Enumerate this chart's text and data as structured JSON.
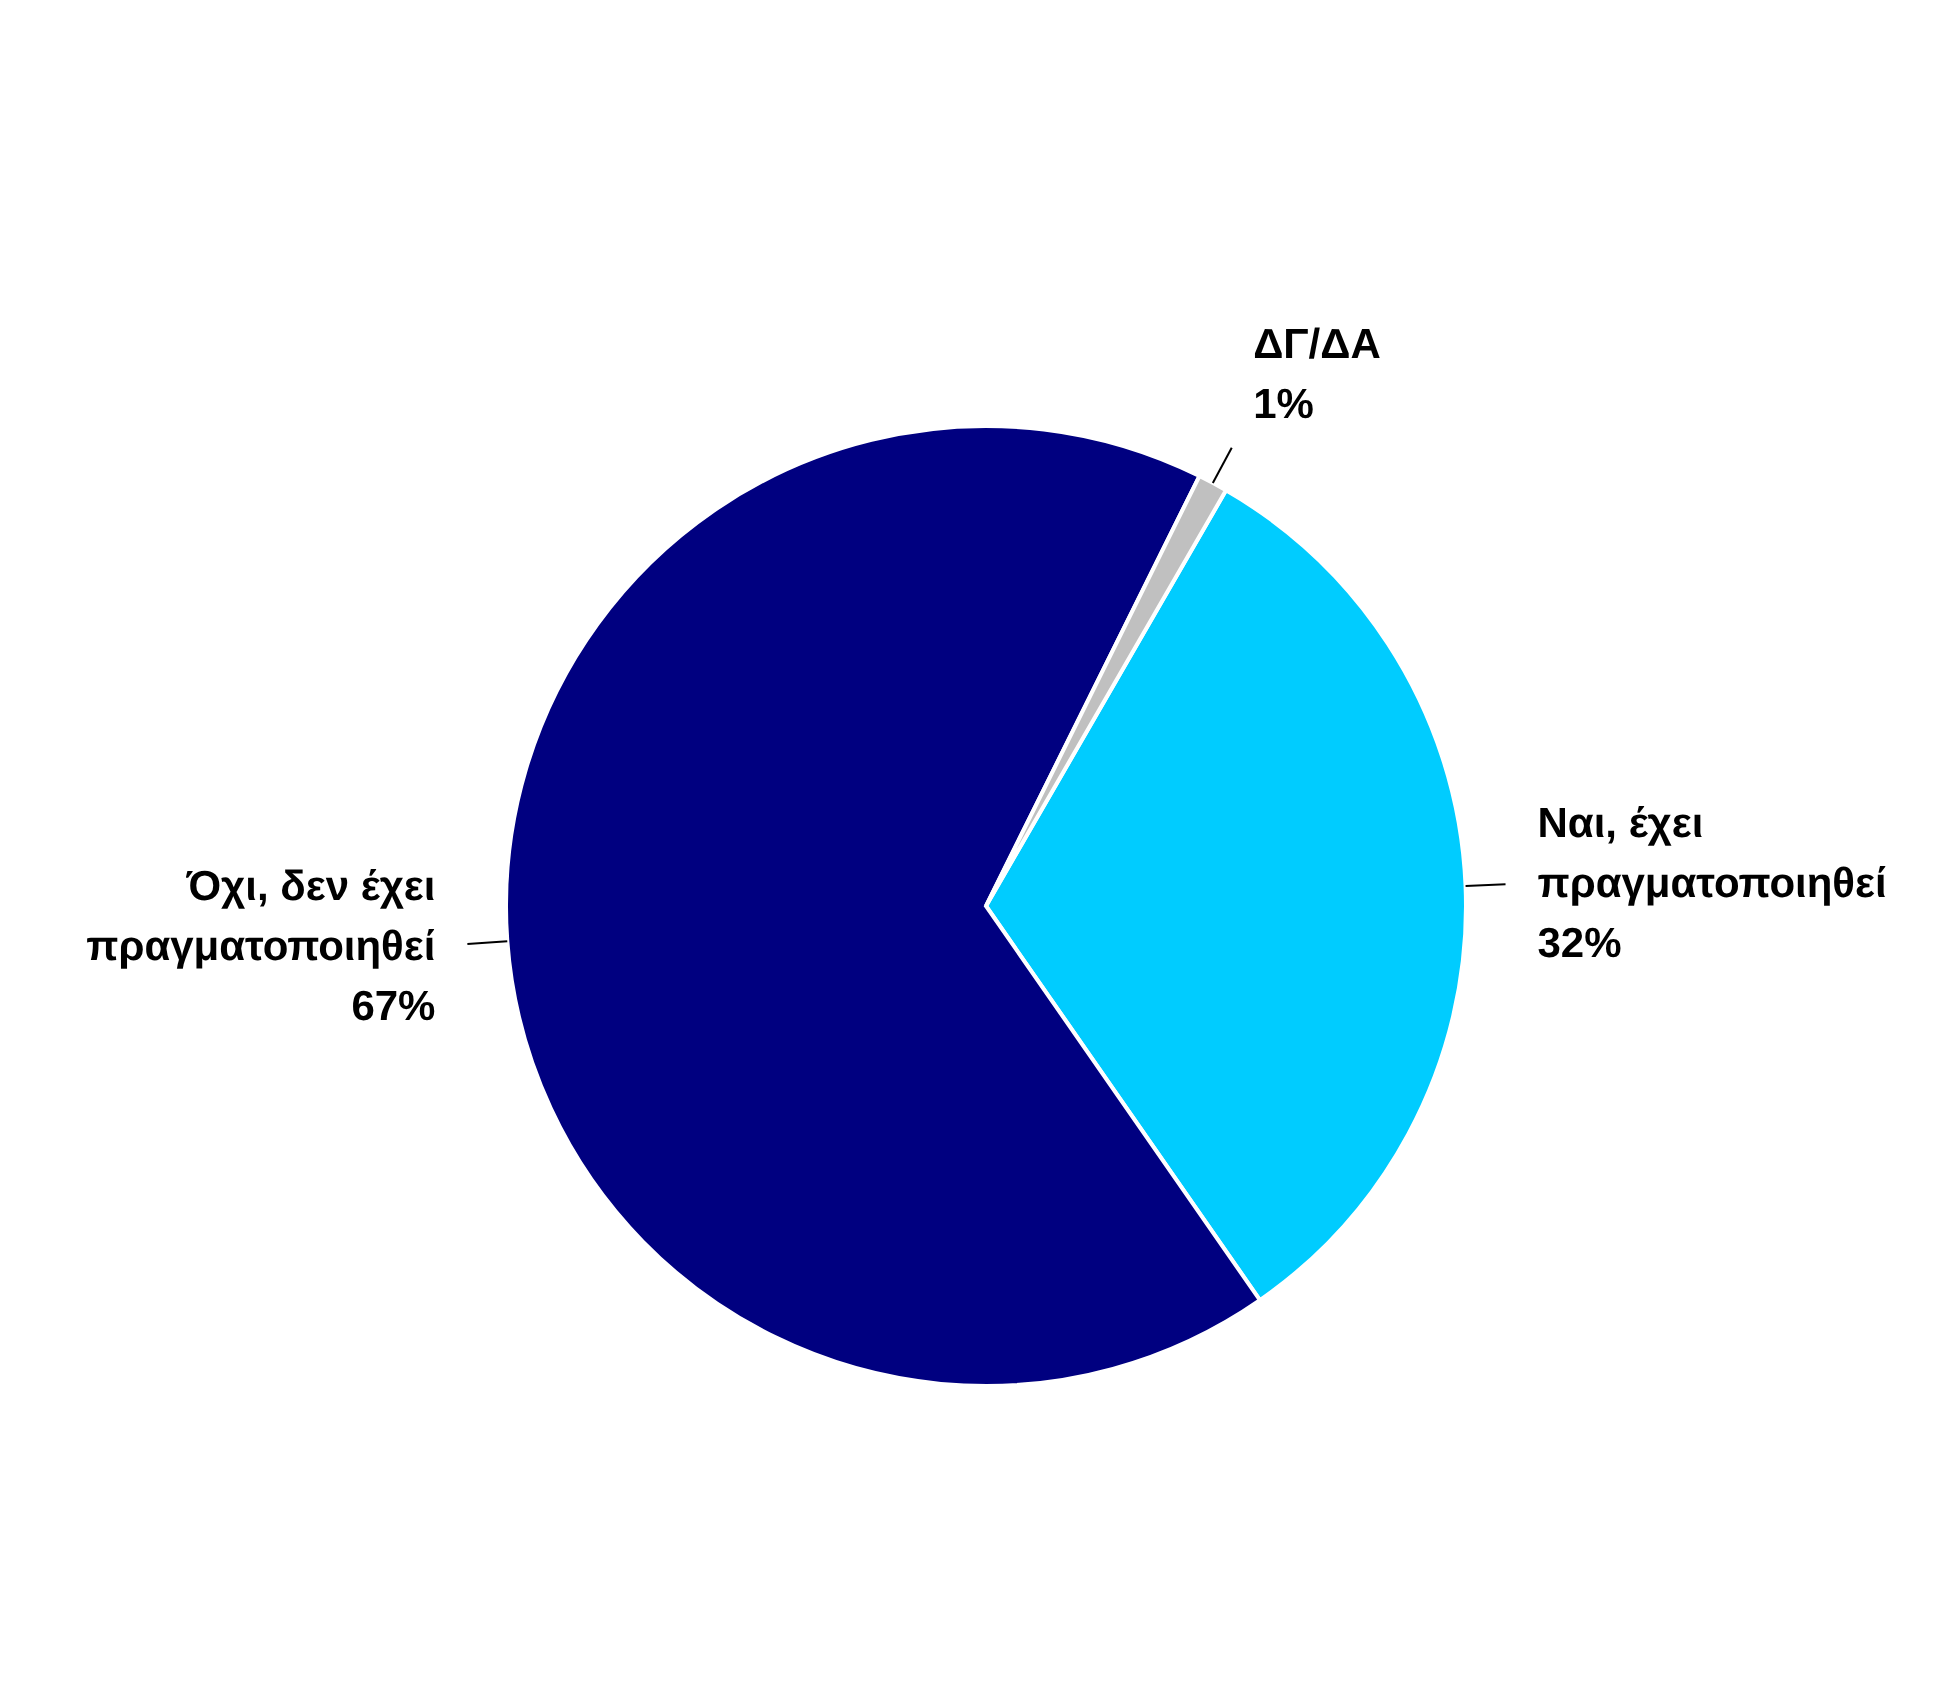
{
  "chart_data": {
    "type": "pie",
    "categories": [
      "Ναι, έχει πραγματοποιηθεί",
      "Όχι, δεν έχει πραγματοποιηθεί",
      "ΔΓ/ΔΑ"
    ],
    "values": [
      32,
      67,
      1
    ],
    "value_labels": [
      "32%",
      "67%",
      "1%"
    ],
    "colors": [
      "#00ccff",
      "#000080",
      "#c0c0c0"
    ],
    "legend": false
  }
}
